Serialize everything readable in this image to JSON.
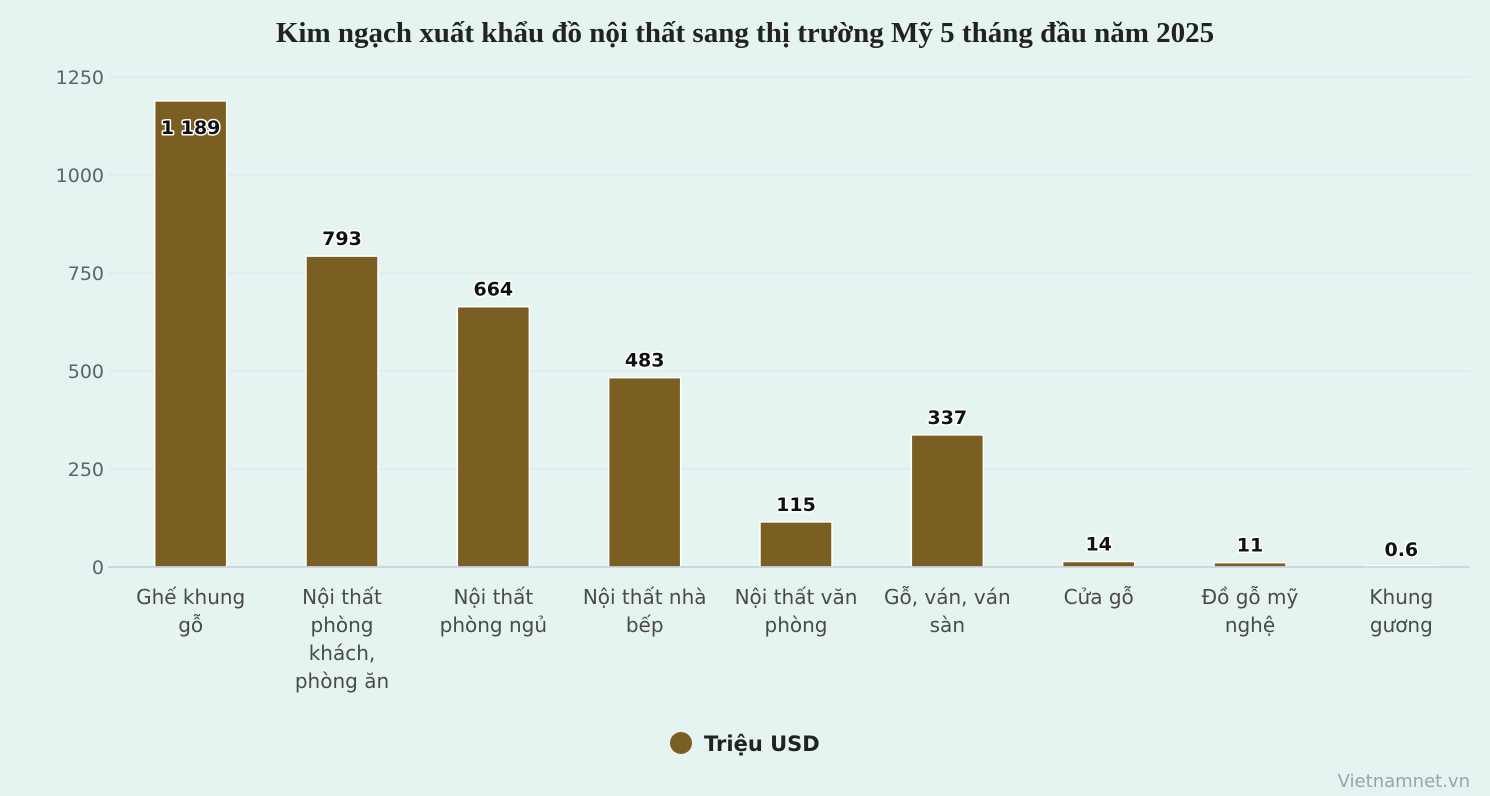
{
  "chart_data": {
    "type": "bar",
    "title": "Kim ngạch xuất khẩu đồ nội thất sang thị trường Mỹ 5 tháng đầu năm 2025",
    "categories": [
      [
        "Ghế khung",
        "gỗ"
      ],
      [
        "Nội thất",
        "phòng",
        "khách,",
        "phòng ăn"
      ],
      [
        "Nội thất",
        "phòng ngủ"
      ],
      [
        "Nội thất nhà",
        "bếp"
      ],
      [
        "Nội thất văn",
        "phòng"
      ],
      [
        "Gỗ, ván, ván",
        "sàn"
      ],
      [
        "Cửa gỗ"
      ],
      [
        "Đồ gỗ mỹ",
        "nghệ"
      ],
      [
        "Khung",
        "gương"
      ]
    ],
    "series": [
      {
        "name": "Triệu USD",
        "values": [
          1189,
          793,
          664,
          483,
          115,
          337,
          14,
          11,
          0.6
        ],
        "labels": [
          "1 189",
          "793",
          "664",
          "483",
          "115",
          "337",
          "14",
          "11",
          "0.6"
        ]
      }
    ],
    "ylim": [
      0,
      1250
    ],
    "yticks": [
      0,
      250,
      500,
      750,
      1000,
      1250
    ],
    "grid": true,
    "legend_position": "bottom-center",
    "colors": {
      "bar": "#7a5e22",
      "background": "#e6f4f1"
    }
  },
  "credit": "Vietnamnet.vn"
}
